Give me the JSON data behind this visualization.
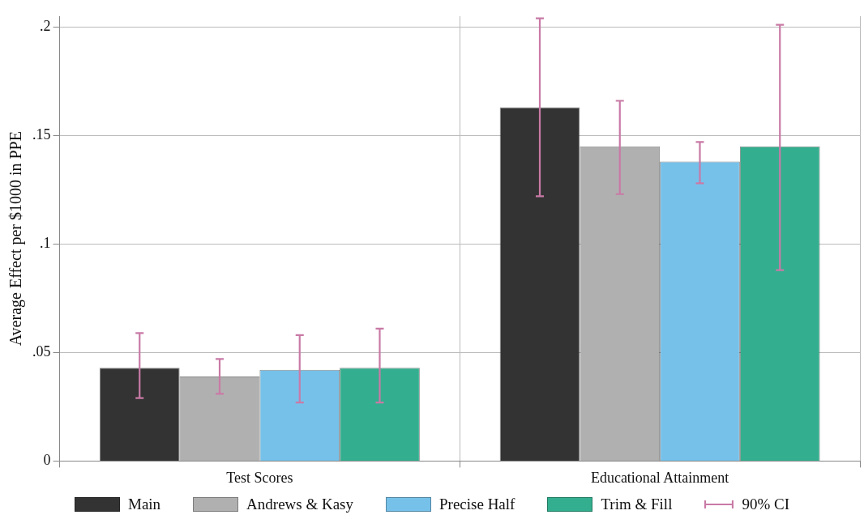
{
  "chart_data": {
    "type": "bar",
    "ylabel": "Average Effect per $1000 in PPE",
    "categories": [
      "Test Scores",
      "Educational Attainment"
    ],
    "series": [
      {
        "name": "Main",
        "color": "#333333",
        "values": [
          0.043,
          0.163
        ],
        "errors": [
          [
            0.029,
            0.059
          ],
          [
            0.122,
            0.204
          ]
        ]
      },
      {
        "name": "Andrews & Kasy",
        "color": "#b0b0b0",
        "values": [
          0.039,
          0.145
        ],
        "errors": [
          [
            0.031,
            0.047
          ],
          [
            0.123,
            0.166
          ]
        ]
      },
      {
        "name": "Precise Half",
        "color": "#76c1ea",
        "values": [
          0.042,
          0.138
        ],
        "errors": [
          [
            0.027,
            0.058
          ],
          [
            0.128,
            0.147
          ]
        ]
      },
      {
        "name": "Trim & Fill",
        "color": "#33af8f",
        "values": [
          0.043,
          0.145
        ],
        "errors": [
          [
            0.027,
            0.061
          ],
          [
            0.088,
            0.201
          ]
        ]
      }
    ],
    "annotations": [
      "90% CI"
    ],
    "ylim": [
      0,
      0.205
    ],
    "yticks": [
      {
        "value": 0,
        "label": "0"
      },
      {
        "value": 0.05,
        "label": ".05"
      },
      {
        "value": 0.1,
        "label": ".1"
      },
      {
        "value": 0.15,
        "label": ".15"
      },
      {
        "value": 0.2,
        "label": ".2"
      }
    ],
    "grid": true,
    "legend": "bottom"
  }
}
